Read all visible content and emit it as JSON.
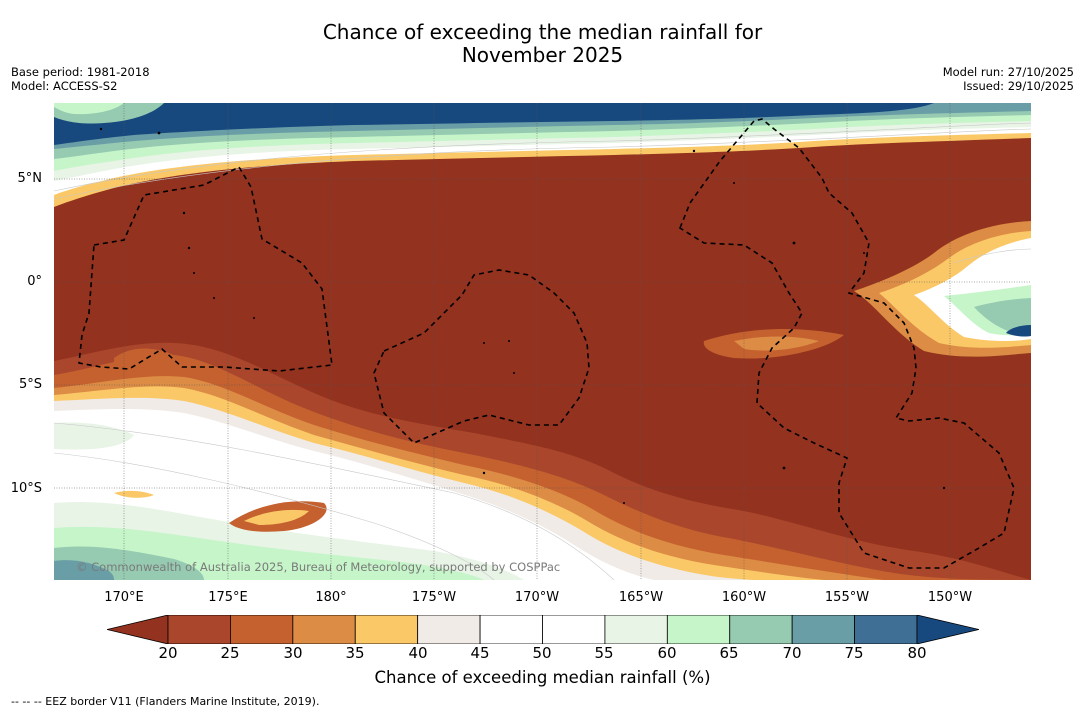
{
  "title": {
    "line1": "Chance of exceeding the median rainfall for",
    "line2": "November 2025"
  },
  "meta": {
    "base_period": "Base period: 1981-2018",
    "model": "Model: ACCESS-S2",
    "model_run": "Model run: 27/10/2025",
    "issued": "Issued: 29/10/2025"
  },
  "map": {
    "copyright": "© Commonwealth of Australia 2025, Bureau of Meteorology, supported by COSPPac",
    "lat_labels": [
      "5°N",
      "0°",
      "5°S",
      "10°S"
    ],
    "lon_labels": [
      "170°E",
      "175°E",
      "180°",
      "175°W",
      "170°W",
      "165°W",
      "160°W",
      "155°W",
      "150°W"
    ]
  },
  "colorbar": {
    "label": "Chance of exceeding median rainfall (%)",
    "ticks": [
      "20",
      "25",
      "30",
      "35",
      "40",
      "45",
      "50",
      "55",
      "60",
      "65",
      "70",
      "75",
      "80"
    ],
    "colors": {
      "below_20": "#93321f",
      "20_25": "#a9462b",
      "25_30": "#c4612f",
      "30_35": "#dc8c44",
      "35_40": "#fbc867",
      "40_45": "#f0ebe7",
      "45_50": "#ffffff",
      "50_55": "#ffffff",
      "55_60": "#e8f4e6",
      "60_65": "#c5f5c8",
      "65_70": "#96cab1",
      "70_75": "#6a9ea6",
      "75_80": "#3f6f94",
      "above_80": "#17497f"
    }
  },
  "footnote": "--  --  -- EEZ border V11 (Flanders Marine Institute, 2019)."
}
